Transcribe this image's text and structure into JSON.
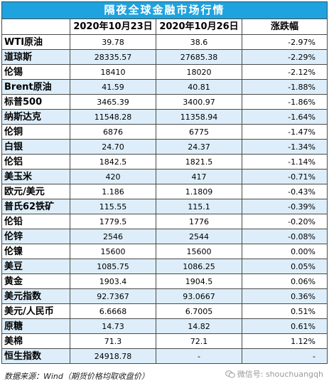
{
  "table": {
    "title": "隔夜全球金融市场行情",
    "headers": [
      "",
      "2020年10月23日",
      "2020年10月26日",
      "涨跌幅"
    ],
    "rows": [
      [
        "WTI原油",
        "39.78",
        "38.6",
        "-2.97%"
      ],
      [
        "道琼斯",
        "28335.57",
        "27685.38",
        "-2.29%"
      ],
      [
        "伦锡",
        "18410",
        "18020",
        "-2.12%"
      ],
      [
        "Brent原油",
        "41.59",
        "40.81",
        "-1.88%"
      ],
      [
        "标普500",
        "3465.39",
        "3400.97",
        "-1.86%"
      ],
      [
        "纳斯达克",
        "11548.28",
        "11358.94",
        "-1.64%"
      ],
      [
        "伦铜",
        "6876",
        "6775",
        "-1.47%"
      ],
      [
        "白银",
        "24.70",
        "24.37",
        "-1.34%"
      ],
      [
        "伦铝",
        "1842.5",
        "1821.5",
        "-1.14%"
      ],
      [
        "美玉米",
        "420",
        "417",
        "-0.71%"
      ],
      [
        "欧元/美元",
        "1.186",
        "1.1809",
        "-0.43%"
      ],
      [
        "普氏62铁矿",
        "115.55",
        "115.1",
        "-0.39%"
      ],
      [
        "伦铅",
        "1779.5",
        "1776",
        "-0.20%"
      ],
      [
        "伦锌",
        "2546",
        "2544",
        "-0.08%"
      ],
      [
        "伦镍",
        "15600",
        "15600",
        "0.00%"
      ],
      [
        "美豆",
        "1085.75",
        "1086.25",
        "0.05%"
      ],
      [
        "黄金",
        "1903.4",
        "1904.5",
        "0.06%"
      ],
      [
        "美元指数",
        "92.7367",
        "93.0667",
        "0.36%"
      ],
      [
        "美元/人民币",
        "6.6668",
        "6.7005",
        "0.51%"
      ],
      [
        "原糖",
        "14.73",
        "14.82",
        "0.61%"
      ],
      [
        "美棉",
        "71.3",
        "72.1",
        "1.12%"
      ],
      [
        "恒生指数",
        "24918.78",
        "-",
        "-"
      ]
    ]
  },
  "footer": {
    "source": "数据来源：Wind（期货价格均取收盘价）",
    "watermark": "微信号: shouchuangqh",
    "watermark_icon": "wechat-icon"
  },
  "colors": {
    "title_bg": "#1fa3de",
    "stripe": "#ddeefa",
    "border": "#4a4a4a"
  }
}
